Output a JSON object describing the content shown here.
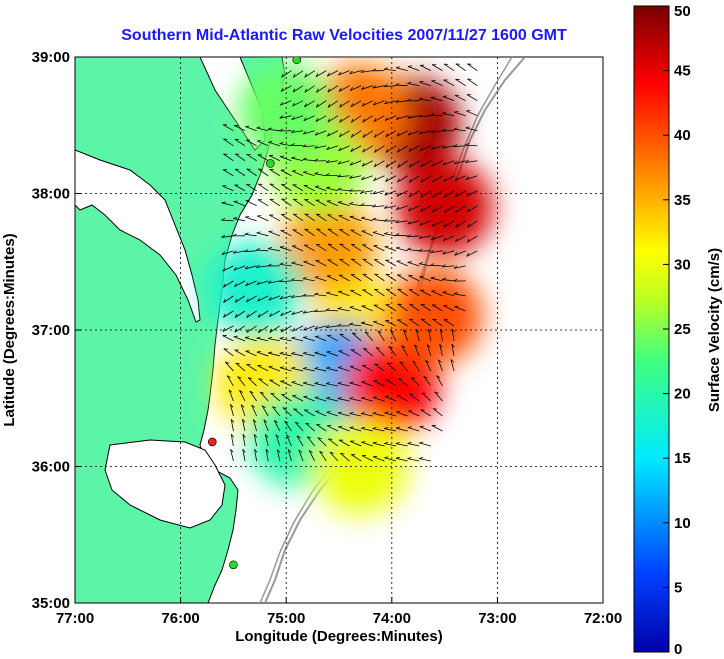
{
  "chart_data": {
    "type": "heatmap",
    "title": "Southern Mid-Atlantic Raw Velocities 2007/11/27 1600 GMT",
    "xlabel": "Longitude (Degrees:Minutes)",
    "ylabel": "Latitude (Degrees:Minutes)",
    "x_ticks": [
      "77:00",
      "76:00",
      "75:00",
      "74:00",
      "73:00",
      "72:00"
    ],
    "y_ticks": [
      "39:00",
      "38:00",
      "37:00",
      "36:00",
      "35:00"
    ],
    "xlim": [
      -77,
      -72
    ],
    "ylim": [
      35,
      39
    ],
    "grid": true,
    "colorbar": {
      "label": "Surface Velocity (cm/s)",
      "ticks": [
        "50",
        "45",
        "40",
        "35",
        "30",
        "25",
        "20",
        "15",
        "10",
        "5",
        "0"
      ],
      "range": [
        0,
        50
      ],
      "colormap": "jet"
    },
    "colors": {
      "land": "#5cf5a8",
      "coast": "#000000",
      "title": "#1a1aff",
      "arrow": "#000000",
      "station_green": "#22dd22",
      "station_red": "#ee2222",
      "bathymetry": "#999999"
    },
    "stations": [
      {
        "lon": -74.9,
        "lat": 38.98,
        "status": "green"
      },
      {
        "lon": -75.15,
        "lat": 38.22,
        "status": "green"
      },
      {
        "lon": -75.7,
        "lat": 36.18,
        "status": "red"
      },
      {
        "lon": -75.5,
        "lat": 35.28,
        "status": "green"
      }
    ],
    "speed_regions": [
      {
        "lon": -73.8,
        "lat": 38.5,
        "speed": 48
      },
      {
        "lon": -73.5,
        "lat": 37.9,
        "speed": 46
      },
      {
        "lon": -74.3,
        "lat": 38.6,
        "speed": 38
      },
      {
        "lon": -74.6,
        "lat": 37.6,
        "speed": 36
      },
      {
        "lon": -74.7,
        "lat": 38.2,
        "speed": 26
      },
      {
        "lon": -75.0,
        "lat": 38.6,
        "speed": 24
      },
      {
        "lon": -75.3,
        "lat": 37.3,
        "speed": 18
      },
      {
        "lon": -74.3,
        "lat": 37.0,
        "speed": 32
      },
      {
        "lon": -74.5,
        "lat": 36.7,
        "speed": 10
      },
      {
        "lon": -74.8,
        "lat": 36.6,
        "speed": 12
      },
      {
        "lon": -75.2,
        "lat": 36.6,
        "speed": 32
      },
      {
        "lon": -74.9,
        "lat": 36.2,
        "speed": 20
      },
      {
        "lon": -74.0,
        "lat": 36.6,
        "speed": 44
      },
      {
        "lon": -73.6,
        "lat": 37.1,
        "speed": 40
      },
      {
        "lon": -74.3,
        "lat": 36.0,
        "speed": 30
      }
    ]
  }
}
